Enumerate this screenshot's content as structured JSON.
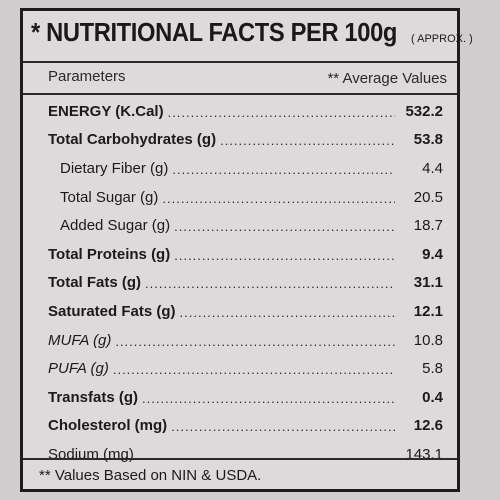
{
  "header": {
    "title": "* NUTRITIONAL FACTS PER 100g",
    "approx": "( APPROX. )",
    "col_parameters": "Parameters",
    "col_values": "** Average Values"
  },
  "rows": [
    {
      "label": "ENERGY (K.Cal)",
      "value": "532.2"
    },
    {
      "label": "Total Carbohydrates (g)",
      "value": "53.8"
    },
    {
      "label": "Dietary Fiber (g)",
      "value": "4.4"
    },
    {
      "label": "Total Sugar (g)",
      "value": "20.5"
    },
    {
      "label": "Added Sugar (g)",
      "value": "18.7"
    },
    {
      "label": "Total Proteins (g)",
      "value": "9.4"
    },
    {
      "label": "Total Fats (g)",
      "value": "31.1"
    },
    {
      "label": "Saturated Fats (g)",
      "value": "12.1"
    },
    {
      "label": "MUFA (g)",
      "value": "10.8"
    },
    {
      "label": "PUFA (g)",
      "value": "5.8"
    },
    {
      "label": "Transfats (g)",
      "value": "0.4"
    },
    {
      "label": "Cholesterol (mg)",
      "value": "12.6"
    },
    {
      "label": "Sodium (mg)",
      "value": "143.1"
    }
  ],
  "footer": {
    "note": "** Values Based on NIN & USDA."
  }
}
